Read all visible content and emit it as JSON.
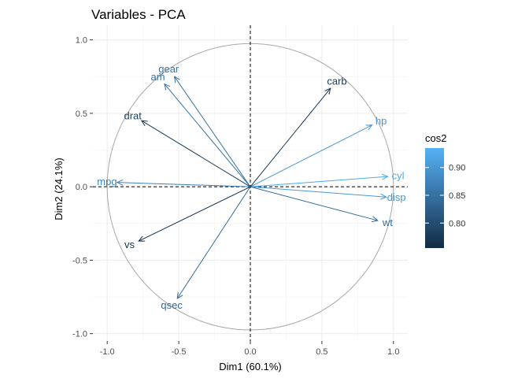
{
  "chart_data": {
    "type": "pca-variable-correlation-circle",
    "title": "Variables - PCA",
    "xlabel": "Dim1 (60.1%)",
    "ylabel": "Dim2 (24.1%)",
    "xlim": [
      -1.1,
      1.1
    ],
    "ylim": [
      -1.05,
      1.1
    ],
    "x_ticks": [
      -1.0,
      -0.5,
      0.0,
      0.5,
      1.0
    ],
    "x_tick_labels": [
      "-1.0",
      "-0.5",
      "0.0",
      "0.5",
      "1.0"
    ],
    "y_ticks": [
      -1.0,
      -0.5,
      0.0,
      0.5,
      1.0
    ],
    "y_tick_labels": [
      "-1.0",
      "-0.5",
      "0.0",
      "0.5",
      "1.0"
    ],
    "grid": true,
    "unit_circle": true,
    "reference_lines": "dashed at x=0 and y=0",
    "variables": [
      {
        "name": "mpg",
        "x": -0.93,
        "y": 0.03,
        "cos2": 0.87
      },
      {
        "name": "cyl",
        "x": 0.96,
        "y": 0.07,
        "cos2": 0.92
      },
      {
        "name": "disp",
        "x": 0.95,
        "y": -0.07,
        "cos2": 0.9
      },
      {
        "name": "hp",
        "x": 0.85,
        "y": 0.42,
        "cos2": 0.9
      },
      {
        "name": "drat",
        "x": -0.76,
        "y": 0.45,
        "cos2": 0.78
      },
      {
        "name": "wt",
        "x": 0.89,
        "y": -0.23,
        "cos2": 0.84
      },
      {
        "name": "qsec",
        "x": -0.51,
        "y": -0.76,
        "cos2": 0.84
      },
      {
        "name": "vs",
        "x": -0.78,
        "y": -0.37,
        "cos2": 0.76
      },
      {
        "name": "am",
        "x": -0.6,
        "y": 0.7,
        "cos2": 0.85
      },
      {
        "name": "gear",
        "x": -0.53,
        "y": 0.75,
        "cos2": 0.85
      },
      {
        "name": "carb",
        "x": 0.56,
        "y": 0.67,
        "cos2": 0.77
      }
    ],
    "legend": {
      "title": "cos2",
      "placement": "right",
      "range": [
        0.755,
        0.935
      ],
      "ticks": [
        0.8,
        0.85,
        0.9
      ],
      "tick_labels": [
        "0.80",
        "0.85",
        "0.90"
      ],
      "color_low": "#132b43",
      "color_high": "#56b1f7"
    }
  }
}
